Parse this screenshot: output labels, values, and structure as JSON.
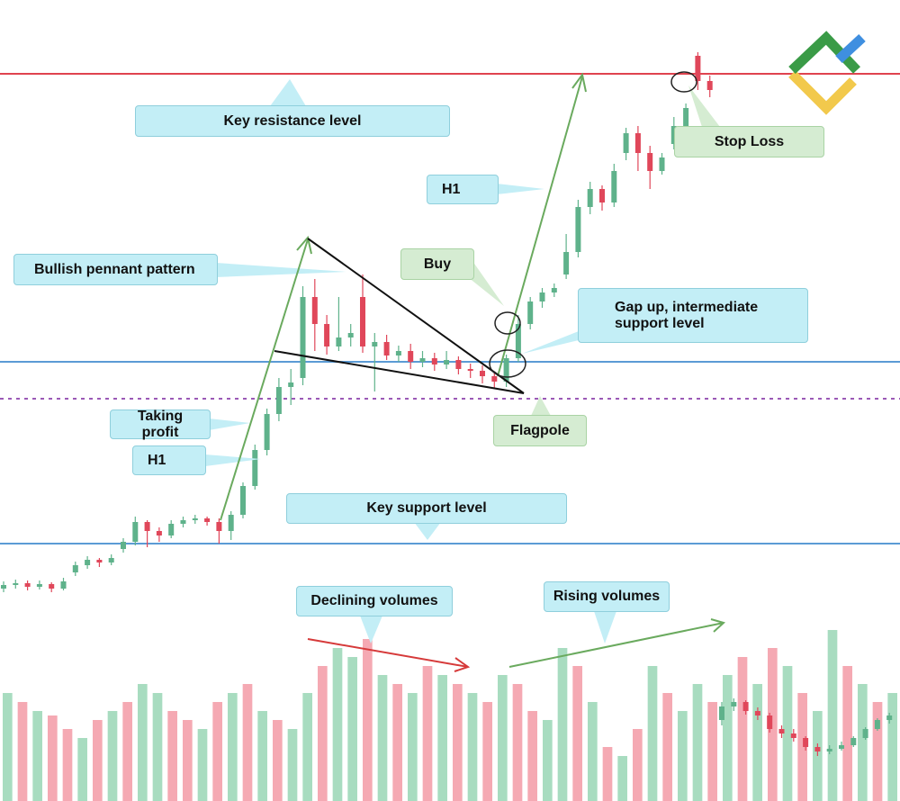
{
  "chart_data": {
    "type": "candlestick",
    "ylim": [
      0,
      890
    ],
    "up_color": "#5fb28b",
    "down_color": "#e0475a",
    "levels": [
      {
        "value": 808,
        "color": "#e0434f",
        "dashed": false
      },
      {
        "value": 488,
        "color": "#5b9bd5",
        "dashed": false
      },
      {
        "value": 447,
        "color": "#9b59b6",
        "dashed": true
      },
      {
        "value": 286,
        "color": "#5b9bd5",
        "dashed": false
      }
    ],
    "candles": [
      [
        236,
        244,
        232,
        240
      ],
      [
        240,
        246,
        236,
        242
      ],
      [
        242,
        245,
        234,
        238
      ],
      [
        238,
        245,
        235,
        241
      ],
      [
        241,
        243,
        232,
        236
      ],
      [
        236,
        248,
        234,
        244
      ],
      [
        254,
        266,
        250,
        262
      ],
      [
        262,
        272,
        258,
        268
      ],
      [
        268,
        270,
        260,
        265
      ],
      [
        265,
        274,
        262,
        270
      ],
      [
        280,
        292,
        276,
        288
      ],
      [
        288,
        316,
        284,
        310
      ],
      [
        310,
        312,
        282,
        300
      ],
      [
        300,
        304,
        288,
        295
      ],
      [
        295,
        312,
        292,
        308
      ],
      [
        308,
        316,
        304,
        312
      ],
      [
        312,
        318,
        308,
        314
      ],
      [
        314,
        316,
        306,
        310
      ],
      [
        310,
        314,
        286,
        300
      ],
      [
        300,
        322,
        290,
        318
      ],
      [
        318,
        354,
        314,
        350
      ],
      [
        350,
        396,
        346,
        390
      ],
      [
        390,
        436,
        384,
        430
      ],
      [
        430,
        470,
        422,
        460
      ],
      [
        460,
        480,
        440,
        465
      ],
      [
        470,
        572,
        462,
        560
      ],
      [
        560,
        580,
        500,
        530
      ],
      [
        530,
        540,
        496,
        505
      ],
      [
        505,
        560,
        500,
        515
      ],
      [
        515,
        530,
        505,
        520
      ],
      [
        560,
        585,
        498,
        505
      ],
      [
        505,
        520,
        455,
        510
      ],
      [
        510,
        518,
        490,
        495
      ],
      [
        495,
        506,
        488,
        500
      ],
      [
        500,
        508,
        480,
        488
      ],
      [
        488,
        500,
        482,
        492
      ],
      [
        492,
        498,
        478,
        485
      ],
      [
        485,
        500,
        480,
        490
      ],
      [
        490,
        494,
        474,
        480
      ],
      [
        480,
        486,
        470,
        478
      ],
      [
        478,
        484,
        464,
        472
      ],
      [
        472,
        476,
        458,
        466
      ],
      [
        466,
        496,
        460,
        492
      ],
      [
        492,
        540,
        488,
        530
      ],
      [
        530,
        560,
        524,
        555
      ],
      [
        555,
        570,
        548,
        565
      ],
      [
        565,
        575,
        560,
        570
      ],
      [
        585,
        630,
        580,
        610
      ],
      [
        610,
        668,
        604,
        660
      ],
      [
        660,
        688,
        652,
        680
      ],
      [
        680,
        684,
        656,
        665
      ],
      [
        665,
        708,
        660,
        700
      ],
      [
        720,
        748,
        712,
        742
      ],
      [
        742,
        750,
        700,
        720
      ],
      [
        720,
        728,
        680,
        700
      ],
      [
        700,
        720,
        696,
        715
      ],
      [
        730,
        760,
        724,
        750
      ],
      [
        750,
        775,
        744,
        770
      ],
      [
        828,
        832,
        790,
        800
      ],
      [
        800,
        806,
        782,
        790
      ],
      [
        90,
        110,
        84,
        105
      ],
      [
        105,
        114,
        100,
        110
      ],
      [
        110,
        112,
        96,
        100
      ],
      [
        100,
        104,
        90,
        95
      ],
      [
        95,
        98,
        76,
        80
      ],
      [
        80,
        84,
        70,
        75
      ],
      [
        75,
        80,
        66,
        70
      ],
      [
        70,
        72,
        56,
        60
      ],
      [
        60,
        64,
        50,
        55
      ],
      [
        55,
        62,
        52,
        58
      ],
      [
        58,
        66,
        56,
        62
      ],
      [
        62,
        72,
        60,
        70
      ],
      [
        70,
        82,
        68,
        80
      ],
      [
        80,
        92,
        78,
        90
      ],
      [
        90,
        98,
        86,
        95
      ]
    ],
    "volume": {
      "values": [
        120,
        110,
        100,
        95,
        80,
        70,
        90,
        100,
        110,
        130,
        120,
        100,
        90,
        80,
        110,
        120,
        130,
        100,
        90,
        80,
        120,
        150,
        170,
        160,
        180,
        140,
        130,
        120,
        150,
        140,
        130,
        120,
        110,
        140,
        130,
        100,
        90,
        170,
        150,
        110,
        60,
        50,
        80,
        150,
        120,
        100,
        130,
        110,
        140,
        160,
        130,
        170,
        150,
        120,
        100,
        190,
        150,
        130,
        110,
        120
      ],
      "up": [
        true,
        false,
        true,
        false,
        false,
        true,
        false,
        true,
        false,
        true,
        true,
        false,
        false,
        true,
        false,
        true,
        false,
        true,
        false,
        true,
        true,
        false,
        true,
        true,
        false,
        true,
        false,
        true,
        false,
        true,
        false,
        true,
        false,
        true,
        false,
        false,
        true,
        true,
        false,
        true,
        false,
        true,
        false,
        true,
        false,
        true,
        true,
        false,
        true,
        false,
        true,
        false,
        true,
        false,
        true,
        true,
        false,
        true,
        false,
        true
      ],
      "up_color": "#a8dcc0",
      "down_color": "#f5a9b3"
    },
    "annotations": [
      "Key resistance level",
      "Bullish pennant pattern",
      "Taking profit",
      "H1",
      "Key support level",
      "Declining volumes",
      "Rising volumes",
      "H1",
      "Buy",
      "Gap up, intermediate support level",
      "Flagpole",
      "Stop Loss"
    ]
  }
}
